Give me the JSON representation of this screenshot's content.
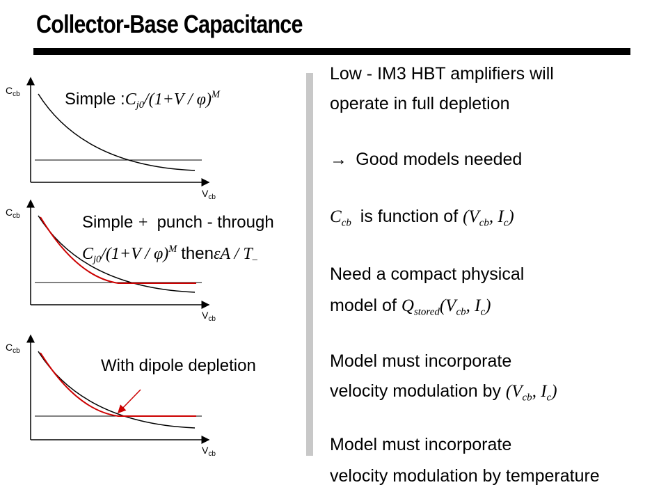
{
  "header": {
    "title": "Collector-Base Capacitance"
  },
  "plots": [
    {
      "y_label": {
        "main": "C",
        "sub": "cb"
      },
      "x_label": {
        "main": "V",
        "sub": "cb"
      },
      "lines": [
        [
          {
            "t": "Simple :"
          },
          {
            "t": "C",
            "s": "math"
          },
          {
            "t": "j0",
            "s": "sub"
          },
          {
            "t": "/(1+V / φ)",
            "s": "math"
          },
          {
            "t": "M",
            "s": "sup"
          }
        ]
      ]
    },
    {
      "y_label": {
        "main": "C",
        "sub": "cb"
      },
      "x_label": {
        "main": "V",
        "sub": "cb"
      },
      "lines": [
        [
          {
            "t": "Simple"
          },
          {
            "t": " + ",
            "s": "math"
          },
          {
            "t": "punch - through"
          }
        ],
        [
          {
            "t": "C",
            "s": "math"
          },
          {
            "t": "j0",
            "s": "sub"
          },
          {
            "t": "/(1+V / φ)",
            "s": "math"
          },
          {
            "t": "M",
            "s": "sup"
          },
          {
            "t": "then"
          },
          {
            "t": "εA / T",
            "s": "math"
          },
          {
            "t": "–",
            "s": "sub"
          }
        ]
      ]
    },
    {
      "y_label": {
        "main": "C",
        "sub": "cb"
      },
      "x_label": {
        "main": "V",
        "sub": "cb"
      },
      "lines": [
        [
          {
            "t": "With dipole depletion"
          }
        ]
      ]
    }
  ],
  "bullets": [
    {
      "lines": [
        [
          {
            "t": "Low - IM3 HBT amplifiers will"
          }
        ],
        [
          {
            "t": "operate in full depletion"
          }
        ]
      ]
    },
    {
      "lines": [
        [
          {
            "t": "→ ",
            "s": "math"
          },
          {
            "t": "Good models needed"
          }
        ]
      ]
    },
    {
      "lines": [
        [
          {
            "t": "C",
            "s": "math"
          },
          {
            "t": "cb",
            "s": "sub"
          },
          {
            "t": " is function of "
          },
          {
            "t": "(V",
            "s": "math"
          },
          {
            "t": "cb",
            "s": "sub"
          },
          {
            "t": ", I",
            "s": "math"
          },
          {
            "t": "c",
            "s": "sub"
          },
          {
            "t": ")",
            "s": "math"
          }
        ]
      ]
    },
    {
      "lines": [
        [
          {
            "t": "Need a compact physical"
          }
        ],
        [
          {
            "t": "model of "
          },
          {
            "t": "Q",
            "s": "math"
          },
          {
            "t": "stored",
            "s": "sub"
          },
          {
            "t": "(V",
            "s": "math"
          },
          {
            "t": "cb",
            "s": "sub"
          },
          {
            "t": ", I",
            "s": "math"
          },
          {
            "t": "c",
            "s": "sub"
          },
          {
            "t": ")",
            "s": "math"
          }
        ]
      ]
    },
    {
      "lines": [
        [
          {
            "t": "Model must incorporate"
          }
        ],
        [
          {
            "t": "velocity modulation by "
          },
          {
            "t": "(V",
            "s": "math"
          },
          {
            "t": "cb",
            "s": "sub"
          },
          {
            "t": ", I",
            "s": "math"
          },
          {
            "t": "c",
            "s": "sub"
          },
          {
            "t": ")",
            "s": "math"
          }
        ]
      ]
    },
    {
      "lines": [
        [
          {
            "t": "Model must incorporate"
          }
        ],
        [
          {
            "t": "velocity modulation by temperature"
          }
        ]
      ]
    }
  ]
}
